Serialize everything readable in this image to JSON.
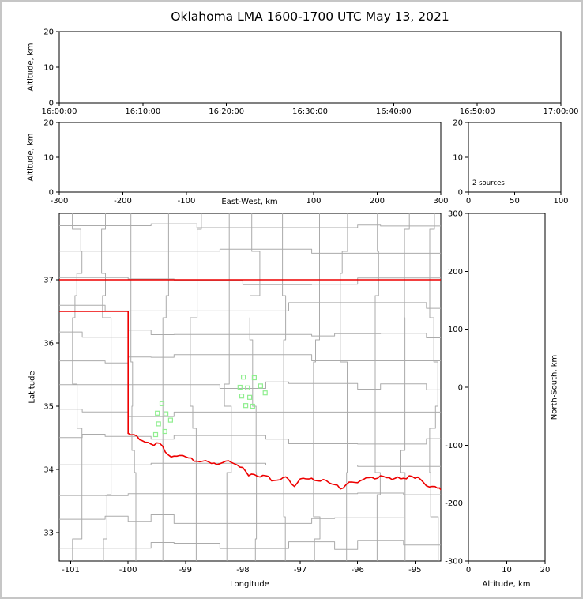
{
  "title": "Oklahoma LMA 1600-1700 UTC May 13, 2021",
  "axes_labels": {
    "time_height_y": "Altitude, km",
    "ew_height_y": "Altitude, km",
    "ew_height_x": "East-West, km",
    "map_x": "Longitude",
    "map_y": "Latitude",
    "ns_height_x": "Altitude, km",
    "ns_height_y": "North-South, km"
  },
  "annotations": {
    "source_count": "2 sources"
  },
  "chart_data": {
    "type": "scatter",
    "title": "Oklahoma LMA 1600-1700 UTC May 13, 2021",
    "style": {
      "marker": "open-square",
      "marker_color": "#90ee90",
      "marker_size_px": 5,
      "state_border_color": "#ee0000",
      "county_line_color": "#ababab",
      "grid": false
    },
    "panels": {
      "time_height": {
        "position": "top",
        "ylabel": "Altitude, km",
        "xticks": [
          "16:00:00",
          "16:10:00",
          "16:20:00",
          "16:30:00",
          "16:40:00",
          "16:50:00",
          "17:00:00"
        ],
        "yticks": [
          0,
          10,
          20
        ],
        "ylim": [
          0,
          20
        ],
        "points": []
      },
      "ew_height": {
        "position": "middle-left",
        "xlabel": "East-West, km",
        "ylabel": "Altitude, km",
        "xticks": [
          -300,
          -200,
          -100,
          0,
          100,
          200,
          300
        ],
        "xlim": [
          -300,
          300
        ],
        "yticks": [
          0,
          10,
          20
        ],
        "ylim": [
          0,
          20
        ],
        "points": []
      },
      "alt_histogram": {
        "position": "middle-right",
        "xticks": [
          0,
          50,
          100
        ],
        "xlim": [
          0,
          100
        ],
        "yticks": [
          0,
          10,
          20
        ],
        "ylim": [
          0,
          20
        ],
        "annotation": "2 sources",
        "points": []
      },
      "map": {
        "position": "bottom-left",
        "xlabel": "Longitude",
        "ylabel": "Latitude",
        "xticks": [
          -101,
          -100,
          -99,
          -98,
          -97,
          -96,
          -95
        ],
        "xlim": [
          -101.2,
          -94.55
        ],
        "yticks": [
          33,
          34,
          35,
          36,
          37
        ],
        "ylim": [
          32.55,
          38.05
        ],
        "green_squares_lon_lat": [
          [
            -99.41,
            35.04
          ],
          [
            -99.49,
            34.89
          ],
          [
            -99.34,
            34.88
          ],
          [
            -99.26,
            34.78
          ],
          [
            -99.47,
            34.72
          ],
          [
            -99.36,
            34.6
          ],
          [
            -99.52,
            34.55
          ],
          [
            -97.99,
            35.46
          ],
          [
            -97.8,
            35.45
          ],
          [
            -98.05,
            35.3
          ],
          [
            -97.92,
            35.29
          ],
          [
            -97.69,
            35.32
          ],
          [
            -97.61,
            35.21
          ],
          [
            -98.02,
            35.16
          ],
          [
            -97.88,
            35.14
          ],
          [
            -97.95,
            35.01
          ],
          [
            -97.83,
            35.0
          ]
        ]
      },
      "ns_height": {
        "position": "bottom-right",
        "xlabel": "Altitude, km",
        "ylabel": "North-South, km",
        "xticks": [
          0,
          10,
          20
        ],
        "xlim": [
          0,
          20
        ],
        "yticks": [
          -300,
          -200,
          -100,
          0,
          100,
          200,
          300
        ],
        "ylim": [
          -300,
          300
        ],
        "points": []
      }
    },
    "map_layers": {
      "oklahoma_border": {
        "north_37N": [
          [
            -101.2,
            37.0
          ],
          [
            -94.55,
            37.0
          ]
        ],
        "panhandle_south_36_5N": [
          [
            -101.2,
            36.5
          ],
          [
            -100.0,
            36.5
          ]
        ],
        "west_100W": [
          [
            -100.0,
            36.5
          ],
          [
            -100.0,
            34.57
          ]
        ],
        "red_river_south_border": [
          [
            -100.0,
            34.57
          ],
          [
            -99.9,
            34.55
          ],
          [
            -99.8,
            34.47
          ],
          [
            -99.7,
            34.43
          ],
          [
            -99.6,
            34.4
          ],
          [
            -99.5,
            34.42
          ],
          [
            -99.4,
            34.37
          ],
          [
            -99.3,
            34.23
          ],
          [
            -99.2,
            34.21
          ],
          [
            -99.1,
            34.22
          ],
          [
            -99.0,
            34.2
          ],
          [
            -98.9,
            34.18
          ],
          [
            -98.8,
            34.13
          ],
          [
            -98.7,
            34.13
          ],
          [
            -98.6,
            34.12
          ],
          [
            -98.5,
            34.1
          ],
          [
            -98.4,
            34.09
          ],
          [
            -98.3,
            34.13
          ],
          [
            -98.2,
            34.11
          ],
          [
            -98.1,
            34.07
          ],
          [
            -98.0,
            34.03
          ],
          [
            -97.9,
            33.9
          ],
          [
            -97.8,
            33.92
          ],
          [
            -97.7,
            33.88
          ],
          [
            -97.6,
            33.9
          ],
          [
            -97.5,
            33.82
          ],
          [
            -97.4,
            33.83
          ],
          [
            -97.3,
            33.87
          ],
          [
            -97.2,
            33.84
          ],
          [
            -97.1,
            33.73
          ],
          [
            -97.0,
            33.85
          ],
          [
            -96.9,
            33.85
          ],
          [
            -96.8,
            33.86
          ],
          [
            -96.7,
            33.82
          ],
          [
            -96.6,
            33.84
          ],
          [
            -96.5,
            33.79
          ],
          [
            -96.4,
            33.76
          ],
          [
            -96.3,
            33.69
          ],
          [
            -96.2,
            33.76
          ],
          [
            -96.1,
            33.8
          ],
          [
            -96.0,
            33.79
          ],
          [
            -95.9,
            33.84
          ],
          [
            -95.8,
            33.87
          ],
          [
            -95.7,
            33.85
          ],
          [
            -95.6,
            33.9
          ],
          [
            -95.5,
            33.87
          ],
          [
            -95.4,
            33.84
          ],
          [
            -95.3,
            33.88
          ],
          [
            -95.2,
            33.86
          ],
          [
            -95.1,
            33.9
          ],
          [
            -95.0,
            33.86
          ],
          [
            -94.9,
            33.84
          ],
          [
            -94.8,
            33.74
          ],
          [
            -94.7,
            33.73
          ],
          [
            -94.6,
            33.7
          ],
          [
            -94.55,
            33.68
          ]
        ]
      }
    }
  }
}
